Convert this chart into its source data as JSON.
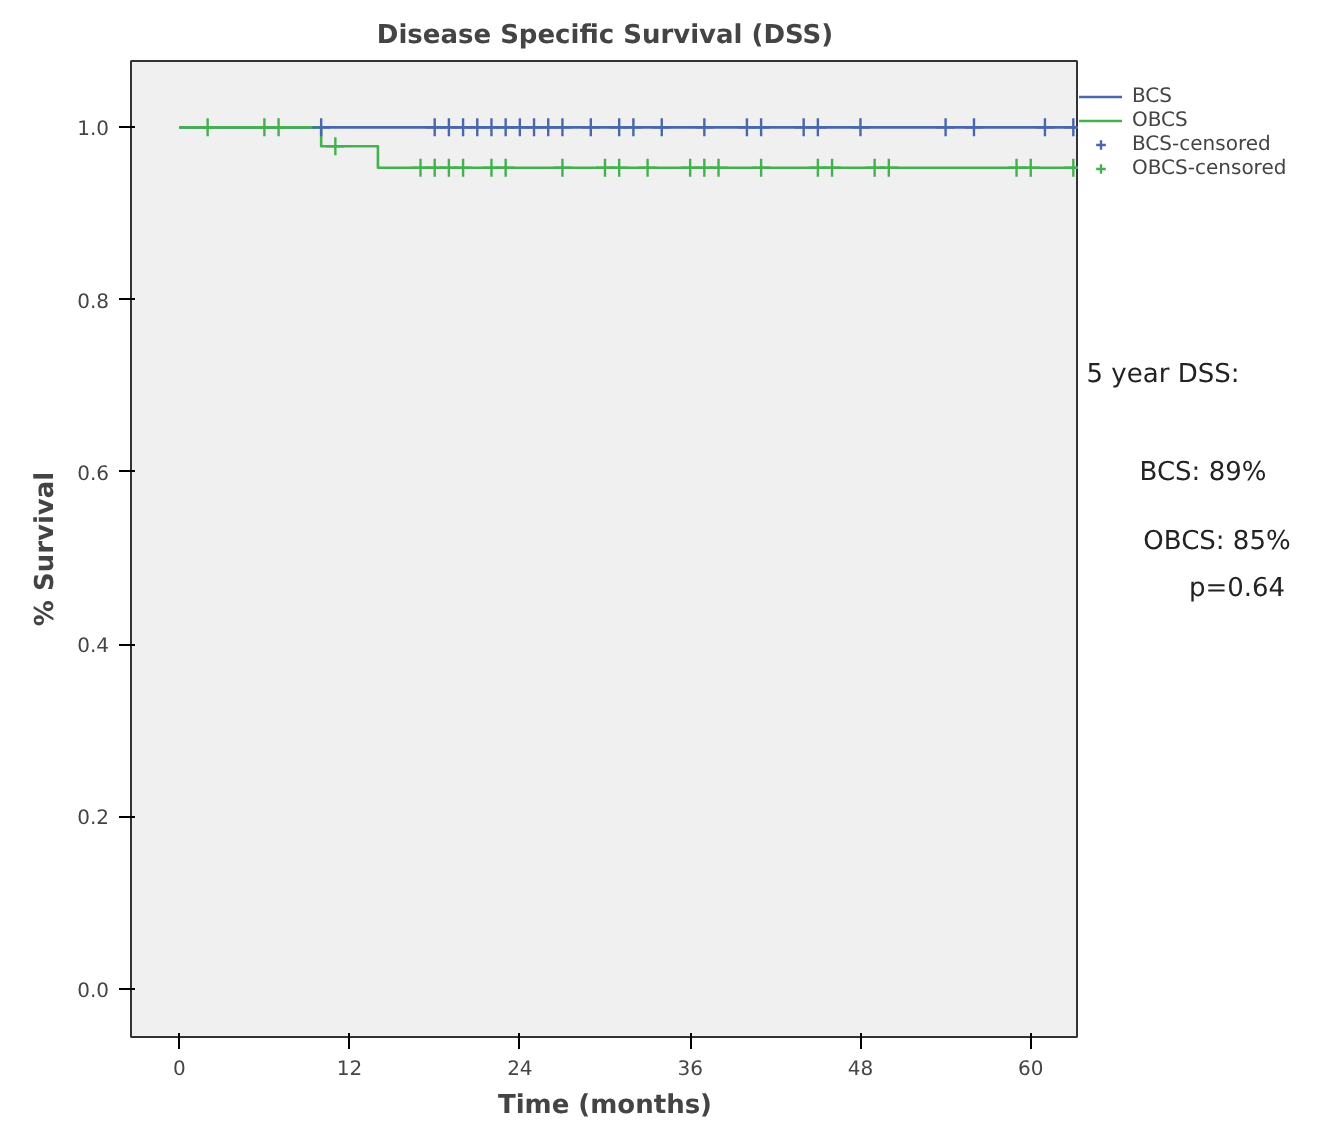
{
  "chart_data": {
    "type": "step",
    "title": "Disease Specific Survival (DSS)",
    "xlabel": "Time (months)",
    "ylabel": "% Survival",
    "xlim": [
      -3.4,
      63.4
    ],
    "ylim": [
      -0.056,
      1.077
    ],
    "xticks": [
      0,
      12,
      24,
      36,
      48,
      60
    ],
    "yticks": [
      {
        "value": 0,
        "label": "0.0"
      },
      {
        "value": 0.2,
        "label": "0.2"
      },
      {
        "value": 0.4,
        "label": "0.4"
      },
      {
        "value": 0.6,
        "label": "0.6"
      },
      {
        "value": 0.8,
        "label": "0.8"
      },
      {
        "value": 1,
        "label": "1.0"
      }
    ],
    "grid": false,
    "legend": "top right",
    "series": [
      {
        "name": "BCS",
        "color": "#4a66ac",
        "marker": "none",
        "x": [
          0,
          63.4
        ],
        "values": [
          1.0,
          1.0
        ]
      },
      {
        "name": "OBCS",
        "color": "#44b050",
        "marker": "none",
        "x": [
          0,
          10,
          14,
          63.4
        ],
        "values": [
          1.0,
          0.978,
          0.953,
          0.953
        ]
      },
      {
        "name": "BCS-censored",
        "type": "scatter",
        "color": "#4a66ac",
        "marker": "cross",
        "x": [
          10,
          18,
          19,
          20,
          21,
          22,
          23,
          24,
          25,
          26,
          27,
          29,
          31,
          32,
          34,
          37,
          40,
          41,
          44,
          45,
          48,
          54,
          56,
          61,
          63
        ],
        "values": [
          1,
          1,
          1,
          1,
          1,
          1,
          1,
          1,
          1,
          1,
          1,
          1,
          1,
          1,
          1,
          1,
          1,
          1,
          1,
          1,
          1,
          1,
          1,
          1,
          1
        ]
      },
      {
        "name": "OBCS-censored",
        "type": "scatter",
        "color": "#44b050",
        "marker": "cross",
        "x": [
          2,
          6,
          7,
          11,
          17,
          18,
          19,
          20,
          22,
          23,
          27,
          30,
          31,
          33,
          36,
          37,
          38,
          41,
          45,
          46,
          49,
          50,
          59,
          60,
          63
        ],
        "values": [
          1,
          1,
          1,
          0.978,
          0.953,
          0.953,
          0.953,
          0.953,
          0.953,
          0.953,
          0.953,
          0.953,
          0.953,
          0.953,
          0.953,
          0.953,
          0.953,
          0.953,
          0.953,
          0.953,
          0.953,
          0.953,
          0.953,
          0.953,
          0.953
        ]
      }
    ],
    "annotations": [
      "5 year DSS:",
      "BCS: 89%",
      "OBCS: 85%",
      "p=0.64"
    ]
  }
}
